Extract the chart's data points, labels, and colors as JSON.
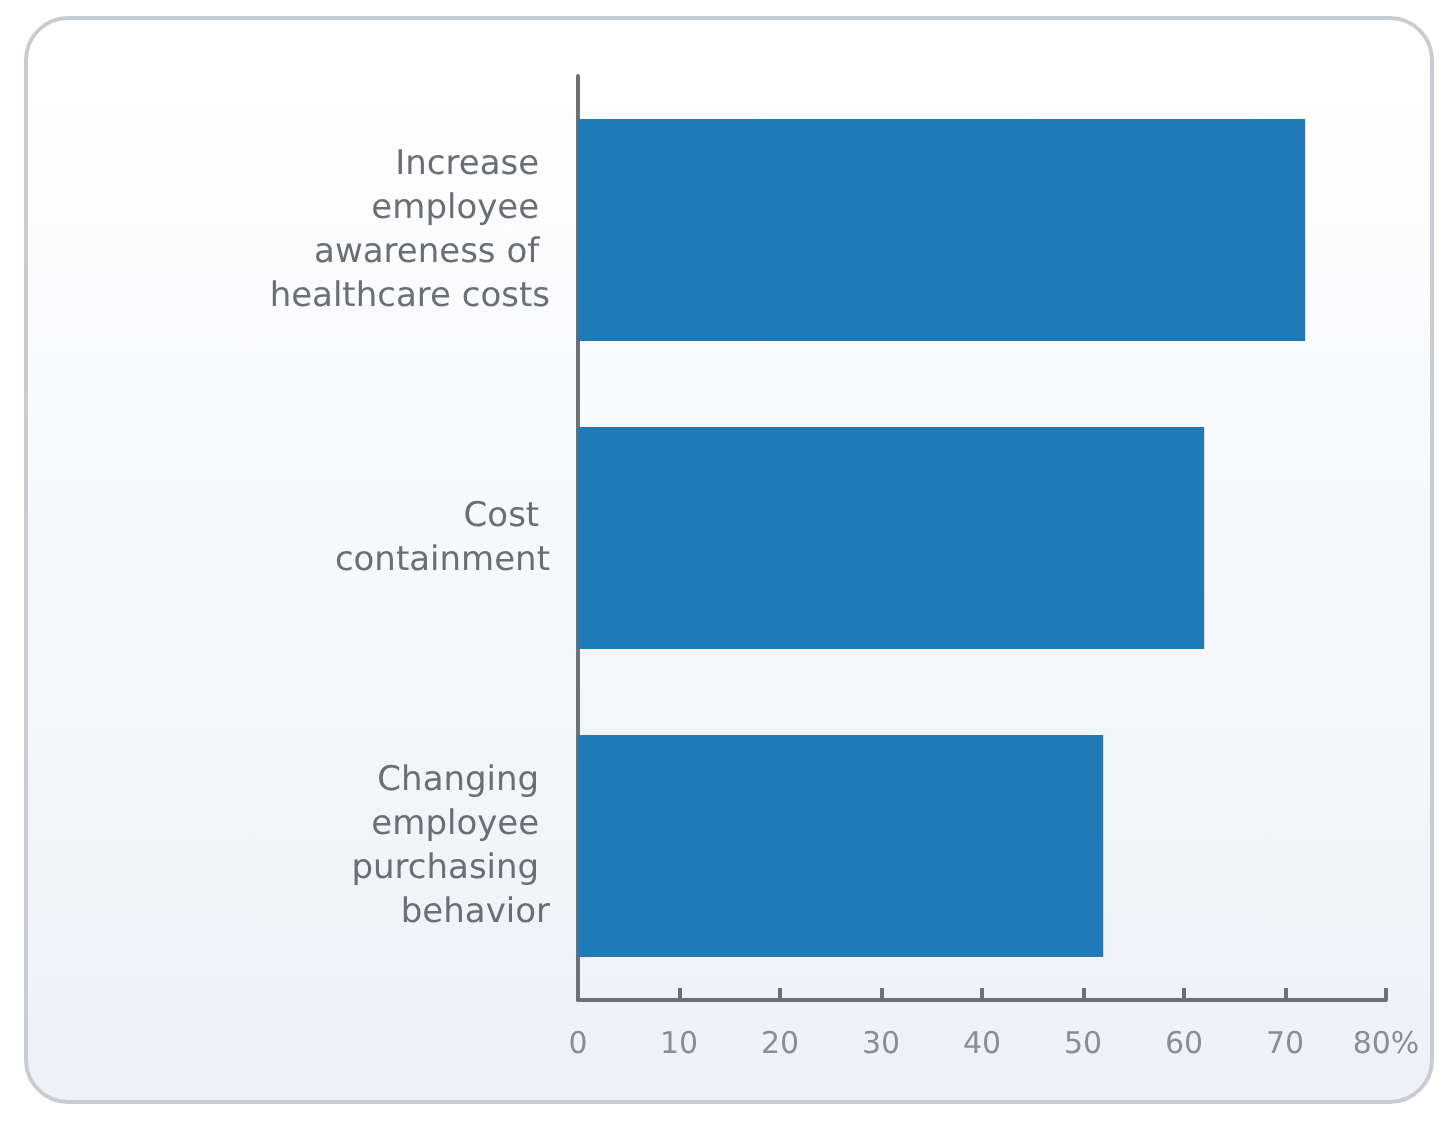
{
  "chart_data": {
    "type": "bar",
    "orientation": "horizontal",
    "categories": [
      "Increase employee awareness of healthcare costs",
      "Cost containment",
      "Changing employee purchasing behavior"
    ],
    "values": [
      72,
      62,
      52
    ],
    "color": "#1f7ab5",
    "xlim": [
      0,
      80
    ],
    "xticks": [
      0,
      10,
      20,
      30,
      40,
      50,
      60,
      70,
      {
        "value": 80,
        "label": "80%"
      }
    ],
    "grid": false
  }
}
